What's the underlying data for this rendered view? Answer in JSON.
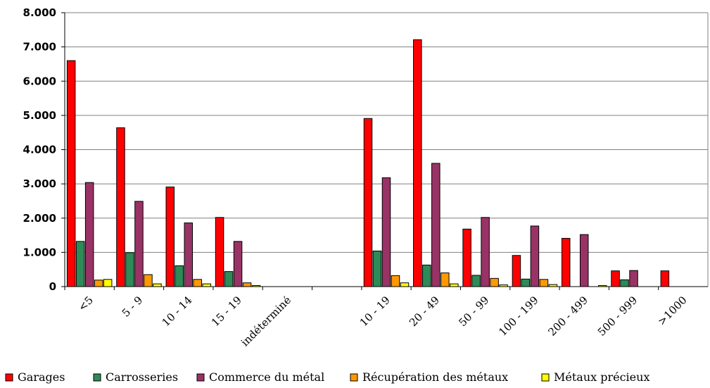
{
  "chart_data": {
    "type": "bar",
    "categories": [
      "<5",
      "5 - 9",
      "10 - 14",
      "15 - 19",
      "indéterminé",
      "",
      "10 - 19",
      "20 - 49",
      "50 - 99",
      "100 - 199",
      "200 - 499",
      "500 - 999",
      ">1000"
    ],
    "series": [
      {
        "name": "Garages",
        "color": "#ff0000",
        "values": [
          6600,
          4640,
          2910,
          2020,
          0,
          null,
          4910,
          7210,
          1680,
          910,
          1410,
          460,
          460
        ]
      },
      {
        "name": "Carrosseries",
        "color": "#2e8b57",
        "values": [
          1320,
          990,
          610,
          440,
          0,
          null,
          1040,
          630,
          330,
          220,
          0,
          200,
          0
        ]
      },
      {
        "name": "Commerce du métal",
        "color": "#993366",
        "values": [
          3040,
          2490,
          1860,
          1320,
          0,
          null,
          3180,
          3600,
          2020,
          1770,
          1520,
          470,
          0
        ]
      },
      {
        "name": "Récupération des métaux",
        "color": "#ff9900",
        "values": [
          190,
          350,
          210,
          110,
          0,
          null,
          320,
          400,
          240,
          210,
          0,
          0,
          0
        ]
      },
      {
        "name": "Métaux précieux",
        "color": "#ffff00",
        "values": [
          210,
          80,
          80,
          30,
          0,
          null,
          110,
          80,
          50,
          60,
          30,
          0,
          0
        ]
      }
    ],
    "y_ticks": [
      "0",
      "1.000",
      "2.000",
      "3.000",
      "4.000",
      "5.000",
      "6.000",
      "7.000",
      "8.000"
    ],
    "ylim": [
      0,
      8000
    ],
    "grid": true,
    "legend": "bottom"
  }
}
